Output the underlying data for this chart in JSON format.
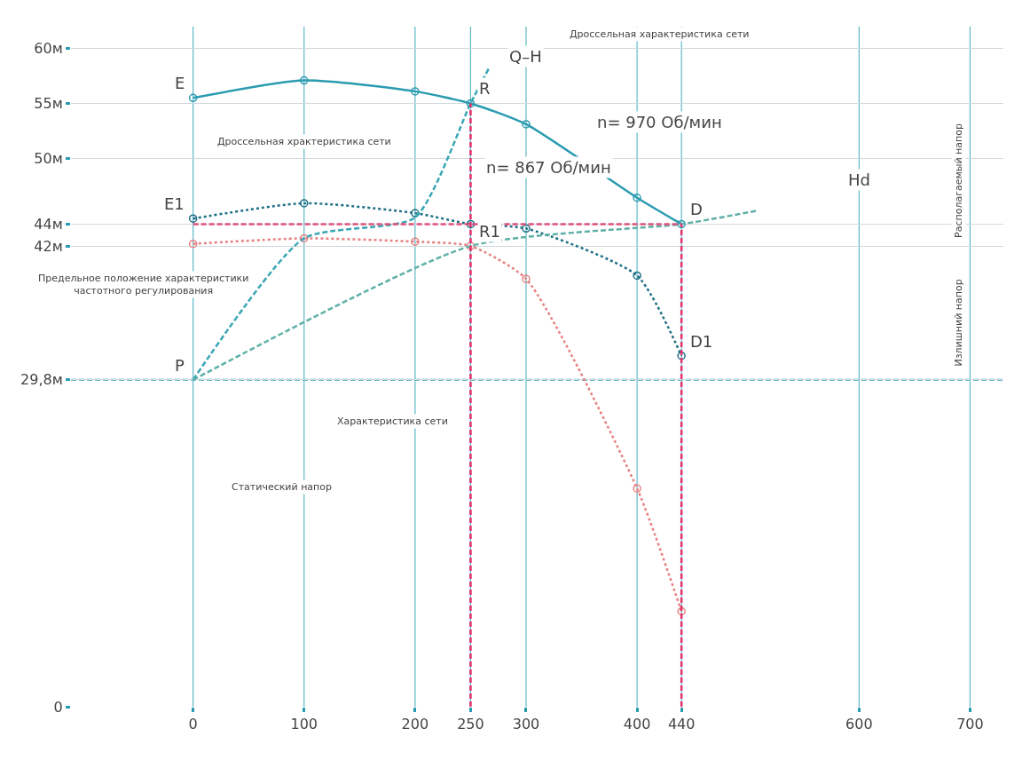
{
  "chart_data": {
    "type": "line",
    "x": [
      0,
      100,
      200,
      250,
      300,
      400,
      440
    ],
    "series": [
      {
        "color": "#2a9bb0",
        "values": [
          55.5,
          57.1,
          56.1,
          55,
          53.1,
          46.4,
          44
        ],
        "marker": "circle",
        "line_style": "solid"
      },
      {
        "color": "#1f6f85",
        "values": [
          44.5,
          45.9,
          45,
          44,
          43.6,
          39.3,
          32
        ],
        "marker": "circle",
        "line_style": "dotted"
      },
      {
        "color": "#e88080",
        "values": [
          42.2,
          42.7,
          42.4,
          42,
          39,
          19.9,
          8.7
        ],
        "marker": "circle",
        "line_style": "dotted"
      },
      {
        "color": "#3aa6b5",
        "x": [
          0,
          100,
          200,
          250,
          267
        ],
        "values": [
          29.8,
          42.7,
          44.6,
          55,
          58.3
        ],
        "marker": "none",
        "line_style": "dashed"
      },
      {
        "color": "#5fb0a8",
        "x": [
          0,
          250,
          440,
          507
        ],
        "values": [
          29.8,
          42,
          44,
          45.2
        ],
        "marker": "none",
        "line_style": "dashed"
      },
      {
        "color": "#e0507a",
        "x": [
          0,
          440
        ],
        "values": [
          44,
          44
        ],
        "marker": "none",
        "line_style": "dashed"
      },
      {
        "color": "#e0306a",
        "x": [
          250,
          250
        ],
        "values": [
          0,
          55
        ],
        "marker": "none",
        "line_style": "dashed"
      },
      {
        "color": "#e0306a",
        "x": [
          440,
          440
        ],
        "values": [
          0,
          44
        ],
        "marker": "none",
        "line_style": "dashed"
      }
    ],
    "xlim": [
      -110,
      730
    ],
    "xticks": [
      0,
      100,
      200,
      250,
      300,
      400,
      440,
      600,
      700
    ],
    "ylim": [
      0,
      62
    ],
    "yticks": [
      {
        "value": 0,
        "label": "0"
      },
      {
        "value": 29.8,
        "label": "29,8м"
      },
      {
        "value": 42,
        "label": "42м"
      },
      {
        "value": 44,
        "label": "44м"
      },
      {
        "value": 50,
        "label": "50м"
      },
      {
        "value": 55,
        "label": "55м"
      },
      {
        "value": 60,
        "label": "60м"
      }
    ],
    "ref_lines": [
      {
        "axis": "y",
        "value": 29.8,
        "color": "#3aa6b5",
        "line_style": "dashed"
      }
    ],
    "annotations": [
      {
        "text": "E",
        "x": 0,
        "y": 55.5
      },
      {
        "text": "R",
        "x": 250,
        "y": 55
      },
      {
        "text": "E1",
        "x": 0,
        "y": 44.5
      },
      {
        "text": "D",
        "x": 440,
        "y": 44
      },
      {
        "text": "R1",
        "x": 250,
        "y": 42
      },
      {
        "text": "P",
        "x": 0,
        "y": 29.8
      },
      {
        "text": "D1",
        "x": 440,
        "y": 32
      },
      "Q–H",
      "n= 970 Об/мин",
      "n= 867 Об/мин",
      "Дроссельная характеристика сети",
      "Дроссельная храктеристика сети",
      "Предельное положение характеристики\nчастотного регулирования",
      "Характеристика сети",
      "Статический напор",
      "Hd",
      "Располагаемый напор",
      "Излишний напор"
    ],
    "grid": true
  }
}
